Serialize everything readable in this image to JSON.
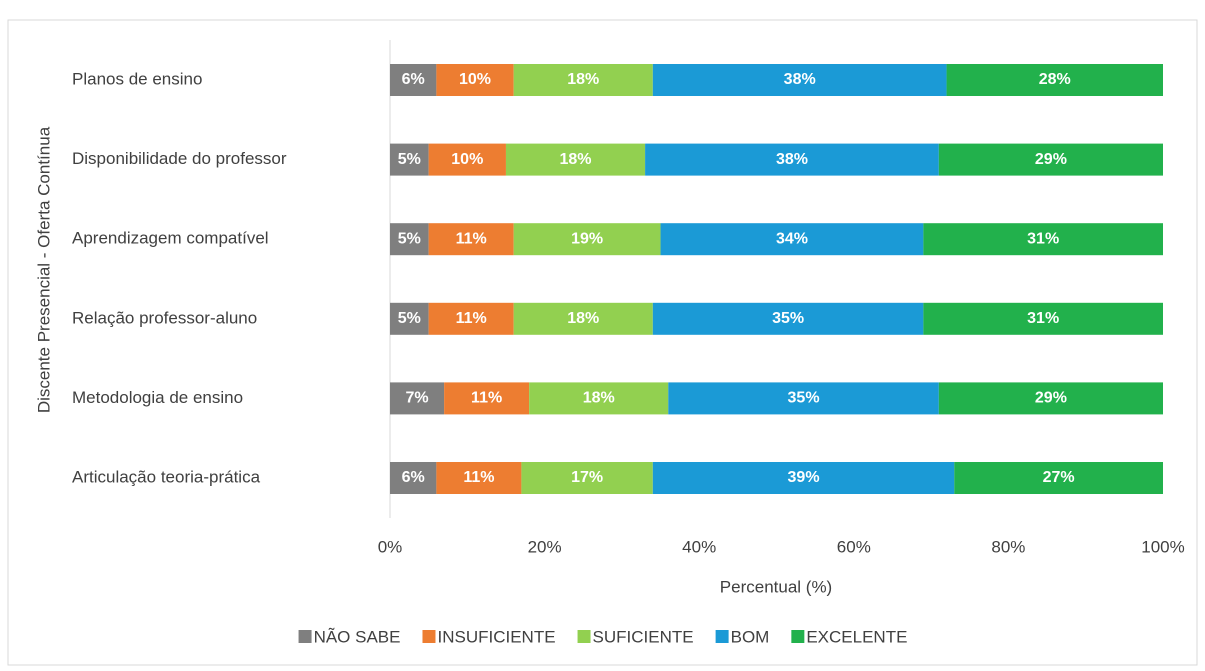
{
  "chart_data": {
    "type": "stacked-bar-horizontal",
    "y_axis_label": "Discente Presencial - Oferta Contínua",
    "x_axis_label": "Percentual (%)",
    "categories": [
      "Planos de ensino",
      "Disponibilidade do professor",
      "Aprendizagem compatível",
      "Relação professor-aluno",
      "Metodologia de ensino",
      "Articulação teoria-prática"
    ],
    "series": [
      {
        "name": "NÃO SABE",
        "color": "#7f7f7f",
        "values": [
          6,
          5,
          5,
          5,
          7,
          6
        ],
        "value_labels": [
          "6%",
          "5%",
          "5%",
          "5%",
          "7%",
          "6%"
        ]
      },
      {
        "name": "INSUFICIENTE",
        "color": "#ed7d31",
        "values": [
          10,
          10,
          11,
          11,
          11,
          11
        ],
        "value_labels": [
          "10%",
          "10%",
          "11%",
          "11%",
          "11%",
          "11%"
        ]
      },
      {
        "name": "SUFICIENTE",
        "color": "#92d050",
        "values": [
          18,
          18,
          19,
          18,
          18,
          17
        ],
        "value_labels": [
          "18%",
          "18%",
          "19%",
          "18%",
          "18%",
          "17%"
        ]
      },
      {
        "name": "BOM",
        "color": "#1b9ad6",
        "values": [
          38,
          38,
          34,
          35,
          35,
          39
        ],
        "value_labels": [
          "38%",
          "38%",
          "34%",
          "35%",
          "35%",
          "39%"
        ]
      },
      {
        "name": "EXCELENTE",
        "color": "#22b14c",
        "values": [
          28,
          29,
          31,
          31,
          29,
          27
        ],
        "value_labels": [
          "28%",
          "29%",
          "31%",
          "31%",
          "29%",
          "27%"
        ]
      }
    ],
    "xlim": [
      0,
      100
    ],
    "xticks": [
      {
        "value": 0,
        "label": "0%"
      },
      {
        "value": 20,
        "label": "20%"
      },
      {
        "value": 40,
        "label": "40%"
      },
      {
        "value": 60,
        "label": "60%"
      },
      {
        "value": 80,
        "label": "80%"
      },
      {
        "value": 100,
        "label": "100%"
      }
    ],
    "legend": "bottom"
  }
}
